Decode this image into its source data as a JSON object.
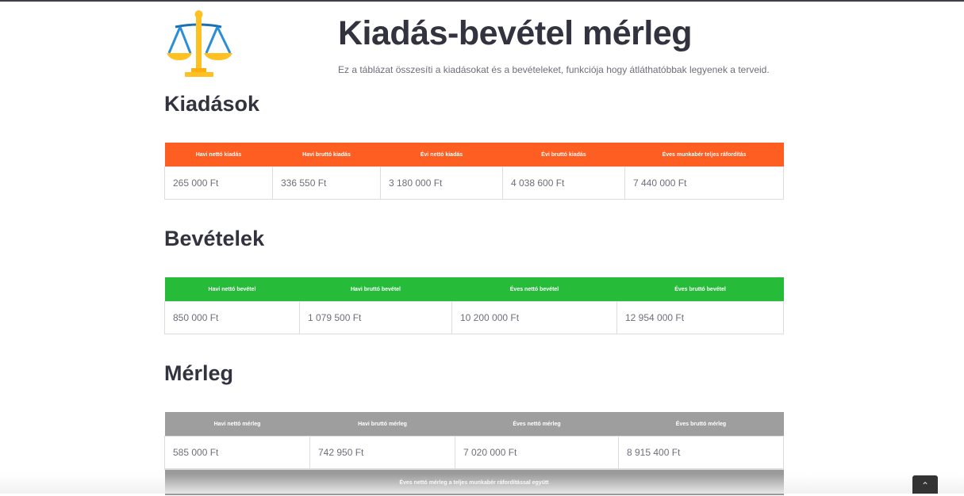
{
  "header": {
    "title": "Kiadás-bevétel mérleg",
    "subtitle": "Ez a táblázat összesíti a kiadásokat és a bevételeket, funkciója hogy átláthatóbbak legyenek a terveid.",
    "logo_icon": "balance-scale-icon"
  },
  "expenses": {
    "heading": "Kiadások",
    "color": "#ff5e22",
    "headers": [
      "Havi nettó kiadás",
      "Havi bruttó kiadás",
      "Évi nettó kiadás",
      "Évi bruttó kiadás",
      "Éves munkabér teljes ráfordítás"
    ],
    "values": [
      "265 000 Ft",
      "336 550 Ft",
      "3 180 000 Ft",
      "4 038 600 Ft",
      "7 440 000 Ft"
    ]
  },
  "income": {
    "heading": "Bevételek",
    "color": "#27bb3a",
    "headers": [
      "Havi nettó bevétel",
      "Havi bruttó bevétel",
      "Éves nettó bevétel",
      "Éves bruttó bevétel"
    ],
    "values": [
      "850 000 Ft",
      "1 079 500 Ft",
      "10 200 000 Ft",
      "12 954 000 Ft"
    ]
  },
  "balance": {
    "heading": "Mérleg",
    "color": "#9e9e9e",
    "headers": [
      "Havi nettó mérleg",
      "Havi bruttó mérleg",
      "Éves nettó mérleg",
      "Éves bruttó mérleg"
    ],
    "values": [
      "585 000 Ft",
      "742 950 Ft",
      "7 020 000 Ft",
      "8 915 400 Ft"
    ],
    "full_header": "Éves nettó mérleg a teljes munkabér ráfordítással együtt"
  },
  "scroll_top": {
    "icon": "chevron-up-icon"
  }
}
